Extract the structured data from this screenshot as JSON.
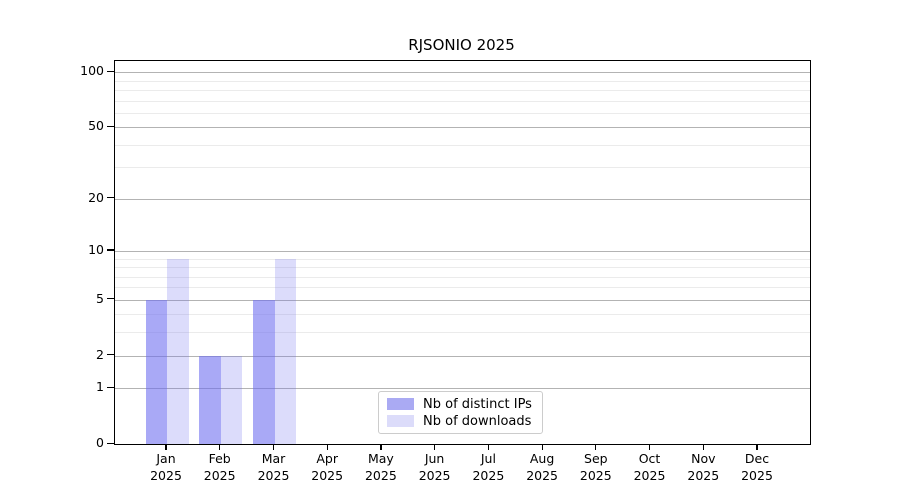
{
  "title": "RJSONIO 2025",
  "chart_data": {
    "type": "bar",
    "title": "RJSONIO 2025",
    "categories": [
      "Jan 2025",
      "Feb 2025",
      "Mar 2025",
      "Apr 2025",
      "May 2025",
      "Jun 2025",
      "Jul 2025",
      "Aug 2025",
      "Sep 2025",
      "Oct 2025",
      "Nov 2025",
      "Dec 2025"
    ],
    "series": [
      {
        "name": "Nb of distinct IPs",
        "values": [
          5,
          2,
          5,
          0,
          0,
          0,
          0,
          0,
          0,
          0,
          0,
          0
        ],
        "bar_color": "rgba(107,107,240,0.58)",
        "legend_color": "#aaaaf3"
      },
      {
        "name": "Nb of downloads",
        "values": [
          9,
          2,
          9,
          0,
          0,
          0,
          0,
          0,
          0,
          0,
          0,
          0
        ],
        "bar_color": "rgba(107,107,240,0.24)",
        "legend_color": "#dcdcfa"
      }
    ],
    "xlabel": "",
    "ylabel": "",
    "yscale": "log1p",
    "ylim": [
      0,
      115
    ],
    "yticks_major": [
      0,
      1,
      2,
      5,
      10,
      20,
      50,
      100
    ],
    "yticks_minor": [
      3,
      4,
      6,
      7,
      8,
      9,
      30,
      40,
      60,
      70,
      80,
      90
    ],
    "grid": "horizontal",
    "legend_position": "bottom-center",
    "colors": {
      "axis": "#000000",
      "grid_major": "#b3b3b3",
      "grid_minor": "#ebebeb",
      "background": "#ffffff"
    }
  }
}
